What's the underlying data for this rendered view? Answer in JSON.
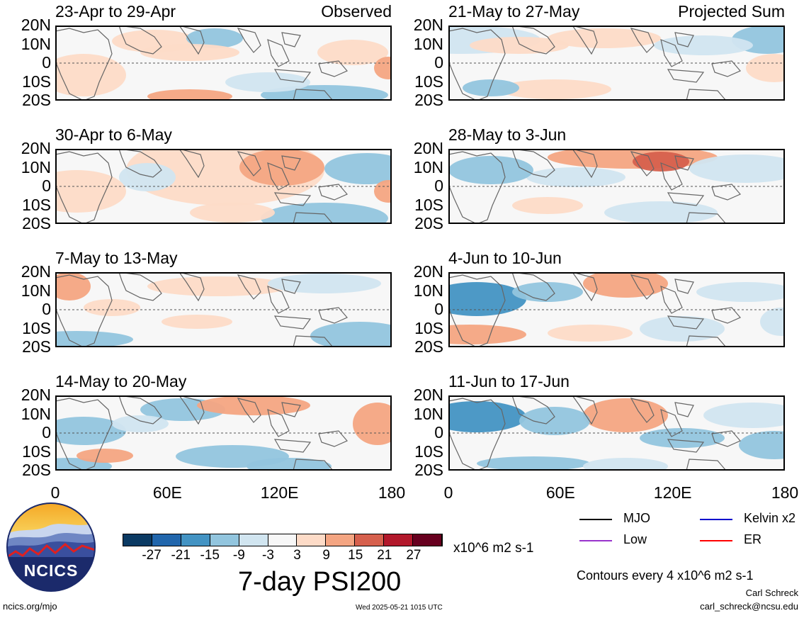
{
  "panels": [
    {
      "title": "23-Apr to 29-Apr",
      "label": "Observed"
    },
    {
      "title": "30-Apr to 6-May",
      "label": ""
    },
    {
      "title": "7-May to 13-May",
      "label": ""
    },
    {
      "title": "14-May to 20-May",
      "label": ""
    },
    {
      "title": "21-May to 27-May",
      "label": "Projected Sum"
    },
    {
      "title": "28-May to 3-Jun",
      "label": ""
    },
    {
      "title": "4-Jun to 10-Jun",
      "label": ""
    },
    {
      "title": "11-Jun to 17-Jun",
      "label": ""
    }
  ],
  "lat_labels": [
    "20N",
    "10N",
    "0",
    "10S",
    "20S"
  ],
  "lon_labels": [
    "0",
    "60E",
    "120E",
    "180"
  ],
  "colorbar": {
    "colors": [
      "#0b3a63",
      "#2166ac",
      "#4393c3",
      "#92c5de",
      "#d1e5f0",
      "#f7f7f7",
      "#fddbc7",
      "#f4a582",
      "#d6604d",
      "#b2182b",
      "#67001f"
    ],
    "ticks": [
      "-27",
      "-21",
      "-15",
      "-9",
      "-3",
      "3",
      "9",
      "15",
      "21",
      "27"
    ],
    "units": "x10^6 m2 s-1",
    "title": "7-day PSI200"
  },
  "legend": {
    "items": [
      {
        "label": "MJO",
        "color": "#000000"
      },
      {
        "label": "Kelvin x2",
        "color": "#0000cc"
      },
      {
        "label": "Low",
        "color": "#9933cc"
      },
      {
        "label": "ER",
        "color": "#ff0000"
      }
    ],
    "contours_note": "Contours every 4 x10^6 m2 s-1"
  },
  "logo": {
    "text": "NCICS"
  },
  "footer": {
    "site": "ncics.org/mjo",
    "timestamp": "Wed 2025-05-21 1015 UTC",
    "author": "Carl Schreck",
    "email": "carl_schreck@ncsu.edu"
  }
}
